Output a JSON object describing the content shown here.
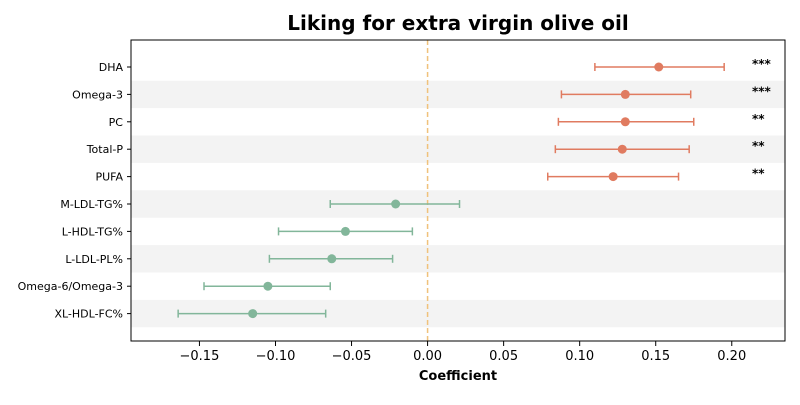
{
  "chart_data": {
    "type": "forest",
    "title": "Liking for extra virgin olive oil",
    "xlabel": "Coefficient",
    "ylabel": "",
    "xlim": [
      -0.195,
      0.235
    ],
    "xticks": [
      -0.15,
      -0.1,
      -0.05,
      0.0,
      0.05,
      0.1,
      0.15,
      0.2
    ],
    "xtick_labels": [
      "−0.15",
      "−0.10",
      "−0.05",
      "0.00",
      "0.05",
      "0.10",
      "0.15",
      "0.20"
    ],
    "reference_line": 0.0,
    "grid": false,
    "colors": {
      "positive": "#e07b60",
      "negative": "#82b69a",
      "reference_line": "#f0c27b",
      "band": "#f3f3f3"
    },
    "rows": [
      {
        "label": "DHA",
        "estimate": 0.152,
        "ci_low": 0.11,
        "ci_high": 0.195,
        "significance": "***"
      },
      {
        "label": "Omega-3",
        "estimate": 0.13,
        "ci_low": 0.088,
        "ci_high": 0.173,
        "significance": "***"
      },
      {
        "label": "PC",
        "estimate": 0.13,
        "ci_low": 0.086,
        "ci_high": 0.175,
        "significance": "**"
      },
      {
        "label": "Total-P",
        "estimate": 0.128,
        "ci_low": 0.084,
        "ci_high": 0.172,
        "significance": "**"
      },
      {
        "label": "PUFA",
        "estimate": 0.122,
        "ci_low": 0.079,
        "ci_high": 0.165,
        "significance": "**"
      },
      {
        "label": "M-LDL-TG%",
        "estimate": -0.021,
        "ci_low": -0.064,
        "ci_high": 0.021,
        "significance": ""
      },
      {
        "label": "L-HDL-TG%",
        "estimate": -0.054,
        "ci_low": -0.098,
        "ci_high": -0.01,
        "significance": ""
      },
      {
        "label": "L-LDL-PL%",
        "estimate": -0.063,
        "ci_low": -0.104,
        "ci_high": -0.023,
        "significance": ""
      },
      {
        "label": "Omega-6/Omega-3",
        "estimate": -0.105,
        "ci_low": -0.147,
        "ci_high": -0.064,
        "significance": ""
      },
      {
        "label": "XL-HDL-FC%",
        "estimate": -0.115,
        "ci_low": -0.164,
        "ci_high": -0.067,
        "significance": ""
      }
    ]
  }
}
